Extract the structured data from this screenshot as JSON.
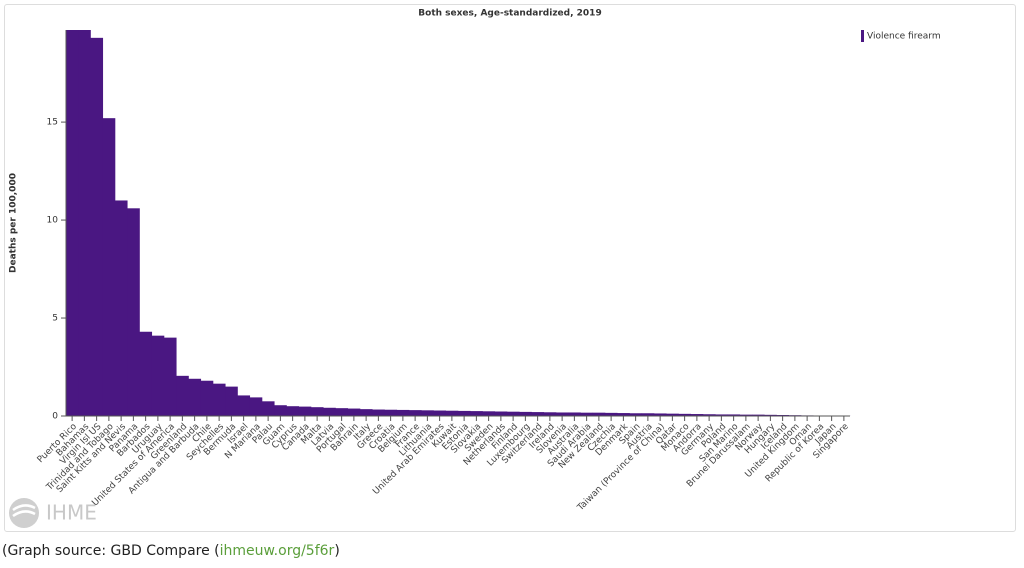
{
  "chart_data": {
    "type": "bar",
    "title": "Both sexes, Age-standardized, 2019",
    "y_label": "Deaths per 100,000",
    "categories": [
      "Puerto Rico",
      "Bahamas",
      "Virgin Isl US",
      "Trinidad and Tobago",
      "Saint Kitts and Nevis",
      "Panama",
      "Barbados",
      "Uruguay",
      "United States of America",
      "Greenland",
      "Antigua and Barbuda",
      "Chile",
      "Seychelles",
      "Bermuda",
      "Israel",
      "N Mariana",
      "Palau",
      "Guam",
      "Cyprus",
      "Canada",
      "Malta",
      "Latvia",
      "Portugal",
      "Bahrain",
      "Italy",
      "Greece",
      "Croatia",
      "Belgium",
      "France",
      "Lithuania",
      "United Arab Emirates",
      "Kuwait",
      "Estonia",
      "Slovakia",
      "Sweden",
      "Netherlands",
      "Finland",
      "Luxembourg",
      "Switzerland",
      "Ireland",
      "Slovenia",
      "Australia",
      "Saudi Arabia",
      "New Zealand",
      "Czechia",
      "Denmark",
      "Spain",
      "Austria",
      "Taiwan (Province of China)",
      "Qatar",
      "Monaco",
      "Andorra",
      "Germany",
      "Poland",
      "San Marino",
      "Brunei Darussalam",
      "Norway",
      "Hungary",
      "Iceland",
      "United Kingdom",
      "Oman",
      "Republic of Korea",
      "Japan",
      "Singapore"
    ],
    "series": [
      {
        "name": "Violence firearm",
        "color": "#4a1782",
        "values": [
          19.7,
          19.7,
          19.3,
          15.2,
          11.0,
          10.6,
          4.3,
          4.1,
          4.0,
          2.05,
          1.9,
          1.8,
          1.65,
          1.5,
          1.05,
          0.95,
          0.75,
          0.55,
          0.5,
          0.48,
          0.45,
          0.42,
          0.4,
          0.38,
          0.35,
          0.33,
          0.32,
          0.31,
          0.3,
          0.29,
          0.28,
          0.27,
          0.26,
          0.25,
          0.24,
          0.23,
          0.22,
          0.21,
          0.2,
          0.19,
          0.18,
          0.18,
          0.17,
          0.17,
          0.16,
          0.15,
          0.14,
          0.14,
          0.13,
          0.12,
          0.11,
          0.1,
          0.09,
          0.08,
          0.08,
          0.07,
          0.07,
          0.06,
          0.05,
          0.04,
          0.03,
          0.02,
          0.01,
          0.01
        ]
      }
    ],
    "ylim": [
      0,
      19.7
    ],
    "yticks": [
      0,
      5,
      10,
      15
    ],
    "legend": "top-right",
    "grid": false
  },
  "logo": "IHME",
  "footer": {
    "prefix": "(Graph source: GBD Compare (",
    "link": "ihmeuw.org/5f6r",
    "suffix": ")"
  }
}
